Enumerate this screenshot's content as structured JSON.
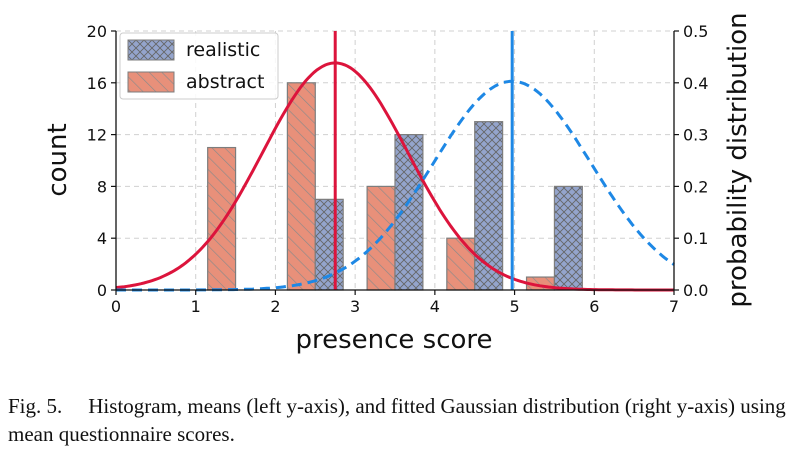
{
  "chart_data": {
    "type": "bar",
    "xlabel": "presence score",
    "ylabel_left": "count",
    "ylabel_right": "probability distribution",
    "xlim": [
      0,
      7
    ],
    "ylim_left": [
      0,
      20
    ],
    "ylim_right": [
      0,
      0.5
    ],
    "x_ticks": [
      "0",
      "1",
      "2",
      "3",
      "4",
      "5",
      "6",
      "7"
    ],
    "y_left_ticks": [
      "0",
      "4",
      "8",
      "12",
      "16",
      "20"
    ],
    "y_right_ticks": [
      "0.0",
      "0.1",
      "0.2",
      "0.3",
      "0.4",
      "0.5"
    ],
    "grid": true,
    "legend_position": "top-left",
    "series": [
      {
        "name": "abstract",
        "color": "#E8907A",
        "pattern": "diagonal-hatch",
        "bins": [
          {
            "x0": 1.15,
            "x1": 1.5,
            "value": 11
          },
          {
            "x0": 2.15,
            "x1": 2.5,
            "value": 16
          },
          {
            "x0": 3.15,
            "x1": 3.5,
            "value": 8
          },
          {
            "x0": 4.15,
            "x1": 4.5,
            "value": 4
          },
          {
            "x0": 5.15,
            "x1": 5.5,
            "value": 1
          }
        ],
        "mean": 2.75,
        "fit": {
          "mu": 2.75,
          "sigma": 0.91
        },
        "fit_style": "solid",
        "line_color": "#DC143C"
      },
      {
        "name": "realistic",
        "color": "#94A4CC",
        "pattern": "cross-hatch",
        "bins": [
          {
            "x0": 2.5,
            "x1": 2.85,
            "value": 7
          },
          {
            "x0": 3.5,
            "x1": 3.85,
            "value": 12
          },
          {
            "x0": 4.5,
            "x1": 4.85,
            "value": 13
          },
          {
            "x0": 5.5,
            "x1": 5.85,
            "value": 8
          }
        ],
        "mean": 4.97,
        "fit": {
          "mu": 4.97,
          "sigma": 0.99
        },
        "fit_style": "dashed",
        "line_color": "#1E88E5"
      }
    ]
  },
  "caption": {
    "label": "Fig. 5.",
    "text": "Histogram, means (left y-axis), and fitted Gaussian distribution (right y-axis) using mean questionnaire scores."
  }
}
